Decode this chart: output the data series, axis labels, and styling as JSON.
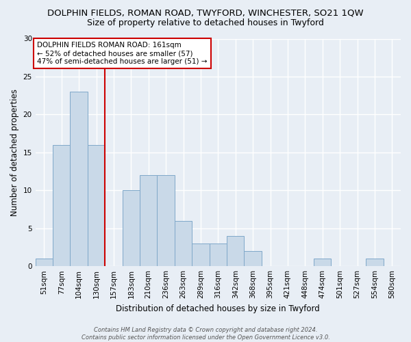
{
  "title1": "DOLPHIN FIELDS, ROMAN ROAD, TWYFORD, WINCHESTER, SO21 1QW",
  "title2": "Size of property relative to detached houses in Twyford",
  "xlabel": "Distribution of detached houses by size in Twyford",
  "ylabel": "Number of detached properties",
  "bin_labels": [
    "51sqm",
    "77sqm",
    "104sqm",
    "130sqm",
    "157sqm",
    "183sqm",
    "210sqm",
    "236sqm",
    "263sqm",
    "289sqm",
    "316sqm",
    "342sqm",
    "368sqm",
    "395sqm",
    "421sqm",
    "448sqm",
    "474sqm",
    "501sqm",
    "527sqm",
    "554sqm",
    "580sqm"
  ],
  "bar_values": [
    1,
    16,
    23,
    16,
    0,
    10,
    12,
    12,
    6,
    3,
    3,
    4,
    2,
    0,
    0,
    0,
    1,
    0,
    0,
    1,
    0
  ],
  "bar_color": "#c9d9e8",
  "bar_edge_color": "#7fa8c9",
  "annotation_title": "DOLPHIN FIELDS ROMAN ROAD: 161sqm",
  "annotation_line1": "← 52% of detached houses are smaller (57)",
  "annotation_line2": "47% of semi-detached houses are larger (51) →",
  "annotation_box_color": "#ffffff",
  "annotation_box_edge": "#cc0000",
  "vline_color": "#cc0000",
  "vline_index": 4,
  "ylim": [
    0,
    30
  ],
  "yticks": [
    0,
    5,
    10,
    15,
    20,
    25,
    30
  ],
  "footer": "Contains HM Land Registry data © Crown copyright and database right 2024.\nContains public sector information licensed under the Open Government Licence v3.0.",
  "bg_color": "#e8eef5",
  "grid_color": "#ffffff",
  "title1_fontsize": 9.5,
  "title2_fontsize": 9,
  "xlabel_fontsize": 8.5,
  "ylabel_fontsize": 8.5,
  "tick_fontsize": 7.5,
  "annot_fontsize": 7.5,
  "footer_fontsize": 6
}
